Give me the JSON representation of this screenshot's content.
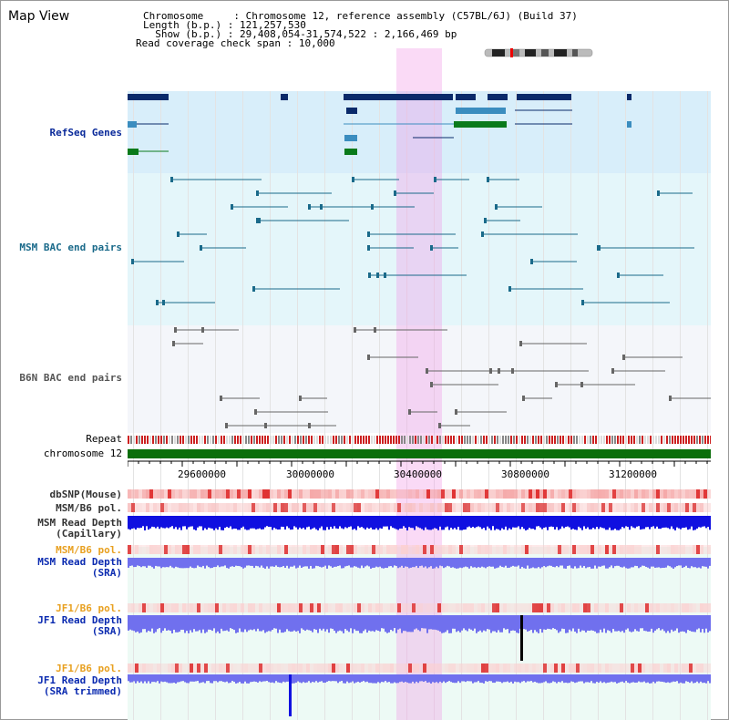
{
  "app": {
    "title": "Map View"
  },
  "info": {
    "chrom_key": "Chromosome     ",
    "chrom_val": "Chromosome 12, reference assembly (C57BL/6J) (Build 37)",
    "length_key": "Length (b.p.) ",
    "length_val": "121,257,530",
    "show_key": "  Show (b.p.) ",
    "show_val": "29,408,054-31,574,522 : 2,166,469 bp",
    "coverage_key": "Read coverage check span ",
    "coverage_val": "10,000",
    "sep": ": "
  },
  "tracks": {
    "refseq": "RefSeq Genes",
    "msm_bac": "MSM BAC end pairs",
    "b6n_bac": "B6N BAC end pairs",
    "repeat": "Repeat",
    "chromosome": "chromosome 12",
    "dbsnp": "dbSNP(Mouse)",
    "msm_b6_pol_1": "MSM/B6 pol.",
    "msm_depth_cap_1": "MSM Read Depth",
    "msm_depth_cap_2": "(Capillary)",
    "msm_b6_pol_2": "MSM/B6 pol.",
    "msm_depth_sra_1": "MSM Read Depth",
    "msm_depth_sra_2": "(SRA)",
    "jf1_b6_pol_1": "JF1/B6 pol.",
    "jf1_depth_sra_1": "JF1 Read Depth",
    "jf1_depth_sra_2": "(SRA)",
    "jf1_b6_pol_2": "JF1/B6 pol.",
    "jf1_depth_trim_1": "JF1 Read Depth",
    "jf1_depth_trim_2": "(SRA trimmed)"
  },
  "axis": {
    "ticks": [
      "29600000",
      "30000000",
      "30400000",
      "30800000",
      "31200000"
    ]
  },
  "colors": {
    "gene_dark": "#0a2a6a",
    "gene_mid": "#3b8dbf",
    "gene_green": "#0a7a1a",
    "bac_teal": "#1a6a8a",
    "bac_gray": "#666666",
    "depth_blue": "#1010e0",
    "depth_light": "#7070ee",
    "chrom_green": "#0a6e0a",
    "highlight": "#f7b8ef"
  }
}
